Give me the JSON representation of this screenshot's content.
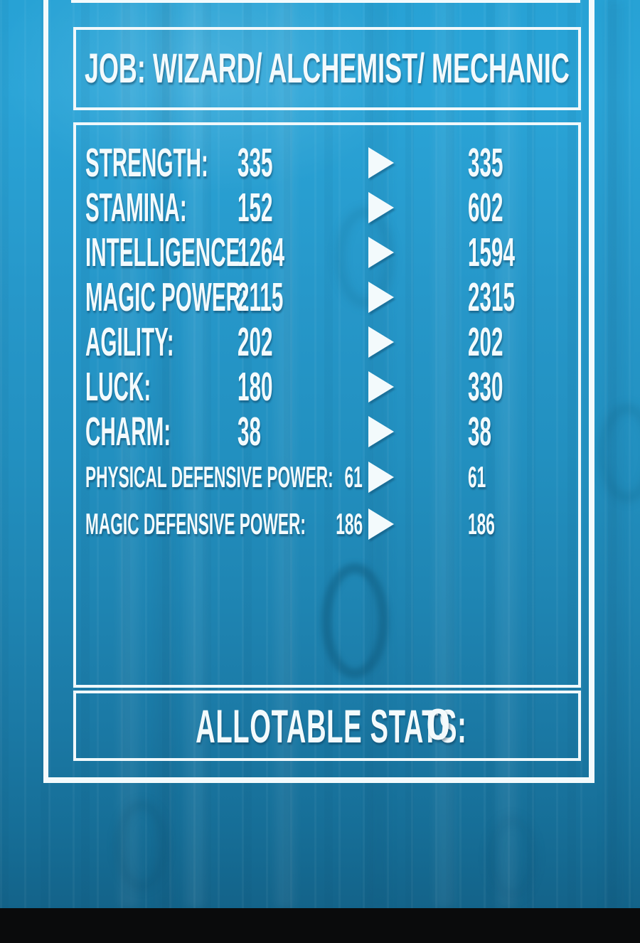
{
  "job_panel": {
    "title": "JOB: WIZARD/ ALCHEMIST/ MECHANIC"
  },
  "stats_panel": {
    "rows": [
      {
        "label": "STRENGTH:",
        "current": "335",
        "new": "335",
        "small": false
      },
      {
        "label": "STAMINA:",
        "current": "152",
        "new": "602",
        "small": false
      },
      {
        "label": "INTELLIGENCE:",
        "current": "1264",
        "new": "1594",
        "small": false
      },
      {
        "label": "MAGIC POWER:",
        "current": "2115",
        "new": "2315",
        "small": false
      },
      {
        "label": "AGILITY:",
        "current": "202",
        "new": "202",
        "small": false
      },
      {
        "label": "LUCK:",
        "current": "180",
        "new": "330",
        "small": false
      },
      {
        "label": "CHARM:",
        "current": "38",
        "new": "38",
        "small": false
      },
      {
        "label": "PHYSICAL DEFENSIVE POWER:",
        "current": "61",
        "new": "61",
        "small": true
      },
      {
        "label": "MAGIC DEFENSIVE POWER:",
        "current": "186",
        "new": "186",
        "small": true
      }
    ]
  },
  "allotable_panel": {
    "label": "ALLOTABLE STATS:",
    "value": "0"
  },
  "icons": {
    "stat_change_arrow": "right-triangle ▶"
  },
  "colors": {
    "background_top": "#27a2d5",
    "background_bottom": "#125e83",
    "frame_white": "#f3fafc",
    "text_white": "#f3fafc",
    "letterbox_black": "#0a0b0c",
    "ghost_digit": "rgba(11,80,112,0.38)"
  }
}
